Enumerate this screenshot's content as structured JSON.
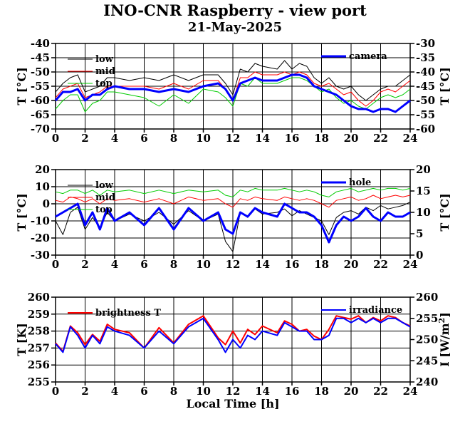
{
  "title": "INO-CNR Raspberry - view port",
  "subtitle": "21-May-2025",
  "colors": {
    "low": "#000000",
    "mid": "#ff0000",
    "top": "#00cc00",
    "blue": "#0000ff",
    "grid": "#000000"
  },
  "chart_data": [
    {
      "type": "line",
      "xlabel": "",
      "ylabel": "T [°C]",
      "ylabel_right": "T [°C]",
      "xlim": [
        0,
        24
      ],
      "ylim": [
        -70,
        -40
      ],
      "ylim_right": [
        -60,
        -30
      ],
      "xticks": [
        "0",
        "2",
        "4",
        "6",
        "8",
        "10",
        "12",
        "14",
        "16",
        "18",
        "20",
        "22",
        "24"
      ],
      "yticks": [
        "-40",
        "-45",
        "-50",
        "-55",
        "-60",
        "-65",
        "-70"
      ],
      "yticks_right": [
        "-30",
        "-35",
        "-40",
        "-45",
        "-50",
        "-55",
        "-60"
      ],
      "grid": true,
      "legend": [
        "low",
        "mid",
        "top"
      ],
      "legend_right": [
        "camera"
      ],
      "series": [
        {
          "name": "low",
          "axis": "left",
          "x": [
            0,
            0.5,
            1,
            1.5,
            2,
            2.5,
            3,
            3.5,
            4,
            5,
            6,
            7,
            8,
            9,
            10,
            11,
            11.5,
            12,
            12.5,
            13,
            13.5,
            14,
            15,
            15.5,
            16,
            16.5,
            17,
            17.5,
            18,
            18.5,
            19,
            19.5,
            20,
            20.5,
            21,
            21.5,
            22,
            22.5,
            23,
            23.5,
            24
          ],
          "y": [
            -57,
            -54,
            -52,
            -51,
            -57,
            -56,
            -55,
            -52,
            -52,
            -53,
            -52,
            -53,
            -51,
            -53,
            -51,
            -51,
            -54,
            -58,
            -49,
            -50,
            -47,
            -48,
            -49,
            -46,
            -49,
            -47,
            -48,
            -52,
            -54,
            -52,
            -55,
            -56,
            -55,
            -58,
            -60,
            -58,
            -56,
            -55,
            -55,
            -53,
            -51
          ]
        },
        {
          "name": "mid",
          "axis": "left",
          "x": [
            0,
            0.5,
            1,
            1.5,
            2,
            2.5,
            3,
            3.5,
            4,
            5,
            6,
            7,
            8,
            9,
            10,
            11,
            11.5,
            12,
            12.5,
            13,
            13.5,
            14,
            15,
            15.5,
            16,
            16.5,
            17,
            17.5,
            18,
            18.5,
            19,
            19.5,
            20,
            20.5,
            21,
            21.5,
            22,
            22.5,
            23,
            23.5,
            24
          ],
          "y": [
            -59,
            -56,
            -55,
            -54,
            -59,
            -58,
            -57,
            -55,
            -55,
            -55,
            -55,
            -56,
            -54,
            -56,
            -53,
            -53,
            -56,
            -60,
            -52,
            -52,
            -50,
            -51,
            -51,
            -50,
            -51,
            -50,
            -51,
            -54,
            -55,
            -54,
            -56,
            -58,
            -57,
            -60,
            -62,
            -60,
            -57,
            -56,
            -57,
            -55,
            -53
          ]
        },
        {
          "name": "top",
          "axis": "left",
          "x": [
            0,
            0.5,
            1,
            1.5,
            2,
            2.5,
            3,
            3.5,
            4,
            5,
            6,
            7,
            8,
            9,
            10,
            11,
            11.5,
            12,
            12.5,
            13,
            13.5,
            14,
            15,
            15.5,
            16,
            16.5,
            17,
            17.5,
            18,
            18.5,
            19,
            19.5,
            20,
            20.5,
            21,
            21.5,
            22,
            22.5,
            23,
            23.5,
            24
          ],
          "y": [
            -63,
            -60,
            -58,
            -58,
            -64,
            -61,
            -60,
            -57,
            -57,
            -58,
            -59,
            -62,
            -58,
            -61,
            -56,
            -57,
            -59,
            -62,
            -54,
            -55,
            -52,
            -54,
            -54,
            -53,
            -52,
            -52,
            -53,
            -55,
            -57,
            -56,
            -59,
            -61,
            -60,
            -62,
            -63,
            -61,
            -59,
            -58,
            -59,
            -58,
            -56
          ]
        },
        {
          "name": "camera",
          "axis": "right",
          "x": [
            0,
            0.5,
            1,
            1.5,
            2,
            2.5,
            3,
            3.5,
            4,
            5,
            6,
            7,
            8,
            9,
            10,
            11,
            11.5,
            12,
            12.5,
            13,
            13.5,
            14,
            15,
            15.5,
            16,
            16.5,
            17,
            17.5,
            18,
            18.5,
            19,
            19.5,
            20,
            20.5,
            21,
            21.5,
            22,
            22.5,
            23,
            23.5,
            24
          ],
          "y": [
            -50,
            -47,
            -47,
            -46,
            -50,
            -48,
            -48,
            -46,
            -45,
            -46,
            -46,
            -47,
            -46,
            -47,
            -45,
            -44,
            -46,
            -50,
            -44,
            -43,
            -42,
            -43,
            -43,
            -42,
            -41,
            -41,
            -42,
            -45,
            -46,
            -47,
            -48,
            -50,
            -52,
            -53,
            -53,
            -54,
            -53,
            -53,
            -54,
            -52,
            -50
          ]
        }
      ]
    },
    {
      "type": "line",
      "xlabel": "",
      "ylabel": "T [°C]",
      "ylabel_right": "T [°C]",
      "xlim": [
        0,
        24
      ],
      "ylim": [
        -30,
        20
      ],
      "ylim_right": [
        0,
        20
      ],
      "xticks": [
        "0",
        "2",
        "4",
        "6",
        "8",
        "10",
        "12",
        "14",
        "16",
        "18",
        "20",
        "22",
        "24"
      ],
      "yticks": [
        "20",
        "10",
        "0",
        "-10",
        "-20",
        "-30"
      ],
      "yticks_right": [
        "20",
        "15",
        "10",
        "5",
        "0"
      ],
      "grid": true,
      "legend": [
        "low",
        "mid",
        "top"
      ],
      "legend_right": [
        "hole"
      ],
      "series": [
        {
          "name": "low",
          "axis": "left",
          "x": [
            0,
            0.5,
            1,
            1.5,
            2,
            2.5,
            3,
            3.5,
            4,
            5,
            6,
            7,
            8,
            9,
            10,
            11,
            11.5,
            12,
            12.5,
            13,
            13.5,
            14,
            15,
            15.5,
            16,
            16.5,
            17,
            17.5,
            18,
            18.5,
            19,
            19.5,
            20,
            20.5,
            21,
            21.5,
            22,
            22.5,
            23,
            23.5,
            24
          ],
          "y": [
            -10,
            -18,
            -5,
            -2,
            -15,
            -8,
            -14,
            -5,
            -10,
            -6,
            -10,
            -5,
            -12,
            -4,
            -10,
            -6,
            -22,
            -28,
            -5,
            -8,
            -3,
            -6,
            -5,
            -3,
            -7,
            -4,
            -6,
            -8,
            -10,
            -18,
            -8,
            -5,
            -4,
            -6,
            -2,
            -4,
            -1,
            -3,
            -2,
            -1,
            1
          ]
        },
        {
          "name": "mid",
          "axis": "left",
          "x": [
            0,
            0.5,
            1,
            1.5,
            2,
            2.5,
            3,
            3.5,
            4,
            5,
            6,
            7,
            8,
            9,
            10,
            11,
            11.5,
            12,
            12.5,
            13,
            13.5,
            14,
            15,
            15.5,
            16,
            16.5,
            17,
            17.5,
            18,
            18.5,
            19,
            19.5,
            20,
            20.5,
            21,
            21.5,
            22,
            22.5,
            23,
            23.5,
            24
          ],
          "y": [
            2,
            1,
            4,
            3,
            1,
            3,
            0,
            3,
            2,
            3,
            1,
            3,
            0,
            4,
            2,
            3,
            0,
            -2,
            3,
            2,
            4,
            3,
            2,
            4,
            3,
            2,
            3,
            2,
            0,
            -2,
            2,
            3,
            4,
            2,
            3,
            5,
            3,
            4,
            5,
            4,
            5
          ]
        },
        {
          "name": "top",
          "axis": "left",
          "x": [
            0,
            0.5,
            1,
            1.5,
            2,
            2.5,
            3,
            3.5,
            4,
            5,
            6,
            7,
            8,
            9,
            10,
            11,
            11.5,
            12,
            12.5,
            13,
            13.5,
            14,
            15,
            15.5,
            16,
            16.5,
            17,
            17.5,
            18,
            18.5,
            19,
            19.5,
            20,
            20.5,
            21,
            21.5,
            22,
            22.5,
            23,
            23.5,
            24
          ],
          "y": [
            7,
            6,
            8,
            8,
            6,
            8,
            5,
            8,
            7,
            8,
            6,
            8,
            6,
            8,
            7,
            8,
            5,
            4,
            8,
            7,
            9,
            8,
            8,
            9,
            8,
            7,
            8,
            7,
            5,
            4,
            7,
            8,
            9,
            7,
            8,
            9,
            8,
            9,
            9,
            8,
            9
          ]
        },
        {
          "name": "hole",
          "axis": "right",
          "x": [
            0,
            0.5,
            1,
            1.5,
            2,
            2.5,
            3,
            3.5,
            4,
            5,
            6,
            7,
            8,
            9,
            10,
            11,
            11.5,
            12,
            12.5,
            13,
            13.5,
            14,
            15,
            15.5,
            16,
            16.5,
            17,
            17.5,
            18,
            18.5,
            19,
            19.5,
            20,
            20.5,
            21,
            21.5,
            22,
            22.5,
            23,
            23.5,
            24
          ],
          "y": [
            9,
            10,
            11,
            12,
            7,
            10,
            6,
            11,
            8,
            10,
            7,
            11,
            6,
            11,
            8,
            10,
            6,
            5,
            10,
            9,
            11,
            10,
            9,
            12,
            11,
            10,
            10,
            9,
            7,
            3,
            7,
            9,
            8,
            9,
            11,
            9,
            8,
            10,
            9,
            9,
            10
          ]
        }
      ]
    },
    {
      "type": "line",
      "xlabel": "Local Time [h]",
      "ylabel": "T [K]",
      "ylabel_right": "I [W/m",
      "ylabel_right_sup": "2",
      "ylabel_right_end": "]",
      "xlim": [
        0,
        24
      ],
      "ylim": [
        255,
        260
      ],
      "ylim_right": [
        240,
        260
      ],
      "xticks": [
        "0",
        "2",
        "4",
        "6",
        "8",
        "10",
        "12",
        "14",
        "16",
        "18",
        "20",
        "22",
        "24"
      ],
      "yticks": [
        "260",
        "259",
        "258",
        "257",
        "256",
        "255"
      ],
      "yticks_right": [
        "260",
        "255",
        "250",
        "245",
        "240"
      ],
      "grid": true,
      "legend": [
        "brightness T"
      ],
      "legend_right": [
        "irradiance"
      ],
      "series": [
        {
          "name": "brightness T",
          "axis": "left",
          "x": [
            0,
            0.5,
            1,
            1.5,
            2,
            2.5,
            3,
            3.5,
            4,
            5,
            6,
            7,
            8,
            9,
            10,
            11,
            11.5,
            12,
            12.5,
            13,
            13.5,
            14,
            15,
            15.5,
            16,
            16.5,
            17,
            17.5,
            18,
            18.5,
            19,
            19.5,
            20,
            20.5,
            21,
            21.5,
            22,
            22.5,
            23,
            23.5,
            24
          ],
          "y": [
            257.3,
            256.8,
            258.3,
            257.9,
            257.2,
            257.8,
            257.4,
            258.4,
            258.1,
            257.9,
            257.0,
            258.2,
            257.3,
            258.4,
            258.9,
            257.6,
            257.2,
            258.0,
            257.3,
            258.1,
            257.8,
            258.3,
            257.9,
            258.6,
            258.4,
            258.0,
            258.1,
            257.7,
            257.5,
            258.1,
            258.9,
            258.8,
            258.7,
            258.9,
            258.5,
            258.8,
            258.6,
            258.9,
            258.8,
            258.5,
            258.3
          ]
        },
        {
          "name": "irradiance",
          "axis": "right",
          "x": [
            0,
            0.5,
            1,
            1.5,
            2,
            2.5,
            3,
            3.5,
            4,
            5,
            6,
            7,
            8,
            9,
            10,
            11,
            11.5,
            12,
            12.5,
            13,
            13.5,
            14,
            15,
            15.5,
            16,
            16.5,
            17,
            17.5,
            18,
            18.5,
            19,
            19.5,
            20,
            20.5,
            21,
            21.5,
            22,
            22.5,
            23,
            23.5,
            24
          ],
          "y": [
            249,
            247,
            253,
            251,
            248,
            251,
            249,
            253,
            252,
            251,
            248,
            252,
            249,
            253,
            255,
            250,
            247,
            250,
            248,
            251,
            250,
            252,
            251,
            254,
            253,
            252,
            252,
            250,
            250,
            251,
            255,
            255,
            254,
            255,
            254,
            255,
            254,
            255,
            255,
            254,
            253
          ]
        }
      ]
    }
  ]
}
